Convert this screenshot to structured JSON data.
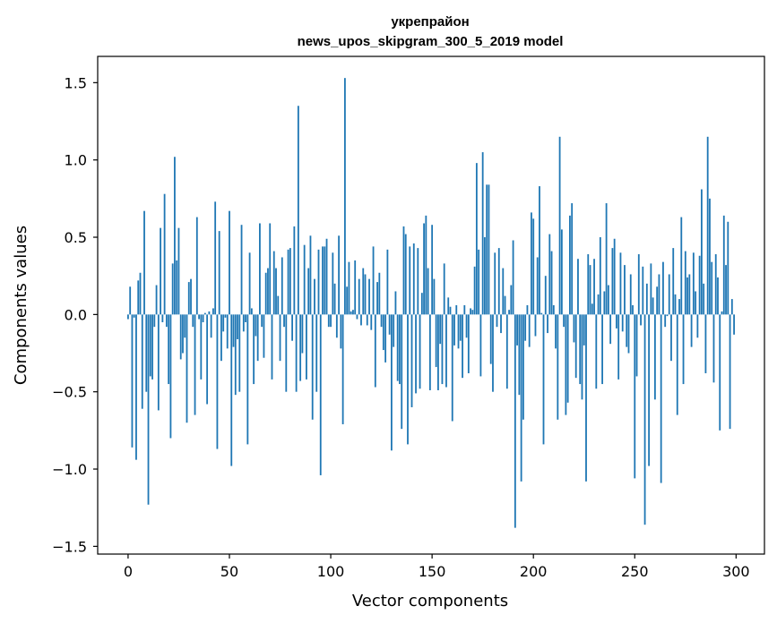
{
  "chart_data": {
    "type": "bar",
    "title_line1": "укрепрайон",
    "title_line2": "news_upos_skipgram_300_5_2019 model",
    "xlabel": "Vector components",
    "ylabel": "Components values",
    "xlim": [
      -15,
      314
    ],
    "ylim": [
      -1.55,
      1.67
    ],
    "xticks": [
      0,
      50,
      100,
      150,
      200,
      250,
      300
    ],
    "xtick_labels": [
      "0",
      "50",
      "100",
      "150",
      "200",
      "250",
      "300"
    ],
    "yticks": [
      -1.5,
      -1.0,
      -0.5,
      0.0,
      0.5,
      1.0,
      1.5
    ],
    "ytick_labels": [
      "−1.5",
      "−1.0",
      "−0.5",
      "0.0",
      "0.5",
      "1.0",
      "1.5"
    ],
    "bar_color": "#1f77b4",
    "grid": false,
    "values": [
      -0.03,
      0.18,
      -0.86,
      -0.02,
      -0.94,
      0.22,
      0.27,
      -0.61,
      0.67,
      -0.5,
      -1.23,
      -0.4,
      -0.42,
      -0.08,
      0.19,
      -0.62,
      0.56,
      -0.05,
      0.78,
      -0.08,
      -0.45,
      -0.8,
      0.33,
      1.02,
      0.35,
      0.56,
      -0.29,
      -0.25,
      -0.15,
      -0.7,
      0.21,
      0.23,
      -0.08,
      -0.65,
      0.63,
      -0.03,
      -0.42,
      -0.05,
      0.01,
      -0.58,
      0.02,
      -0.15,
      0.04,
      0.73,
      -0.87,
      0.54,
      -0.3,
      -0.11,
      -0.02,
      -0.22,
      0.67,
      -0.98,
      -0.21,
      -0.52,
      -0.16,
      -0.5,
      0.58,
      -0.11,
      -0.05,
      -0.84,
      0.4,
      0.04,
      -0.45,
      -0.14,
      -0.3,
      0.59,
      -0.08,
      -0.28,
      0.27,
      0.3,
      0.59,
      -0.42,
      0.41,
      0.3,
      0.12,
      -0.3,
      0.37,
      -0.08,
      -0.5,
      0.42,
      0.43,
      -0.17,
      0.57,
      -0.5,
      1.35,
      -0.43,
      -0.25,
      0.45,
      -0.42,
      0.3,
      0.51,
      -0.68,
      0.23,
      -0.5,
      0.42,
      -1.04,
      0.44,
      0.44,
      0.49,
      -0.08,
      -0.08,
      0.4,
      0.2,
      -0.15,
      0.51,
      -0.22,
      -0.71,
      1.53,
      0.18,
      0.34,
      0.02,
      0.03,
      0.35,
      -0.03,
      0.23,
      -0.07,
      0.3,
      0.26,
      -0.07,
      0.23,
      -0.1,
      0.44,
      -0.47,
      0.21,
      0.27,
      -0.08,
      -0.23,
      -0.31,
      0.42,
      -0.13,
      -0.88,
      -0.21,
      0.15,
      -0.43,
      -0.45,
      -0.74,
      0.57,
      0.52,
      -0.84,
      0.44,
      -0.6,
      0.46,
      -0.51,
      0.43,
      -0.48,
      0.14,
      0.59,
      0.64,
      0.3,
      -0.49,
      0.58,
      0.23,
      -0.34,
      -0.49,
      -0.19,
      -0.45,
      0.33,
      -0.47,
      0.11,
      0.05,
      -0.69,
      -0.2,
      0.06,
      -0.22,
      -0.17,
      -0.41,
      0.06,
      -0.15,
      -0.38,
      0.04,
      0.03,
      0.31,
      0.98,
      0.42,
      -0.4,
      1.05,
      0.5,
      0.84,
      0.84,
      -0.32,
      -0.5,
      0.4,
      -0.08,
      0.43,
      -0.12,
      0.3,
      0.12,
      -0.48,
      0.03,
      0.19,
      0.48,
      -1.38,
      -0.2,
      -0.52,
      -1.08,
      -0.68,
      -0.17,
      0.06,
      -0.21,
      0.66,
      0.62,
      -0.14,
      0.37,
      0.83,
      0.01,
      -0.84,
      0.25,
      -0.12,
      0.52,
      0.41,
      0.06,
      -0.22,
      -0.68,
      1.15,
      0.55,
      -0.08,
      -0.65,
      -0.57,
      0.64,
      0.72,
      -0.18,
      -0.41,
      0.36,
      -0.45,
      -0.55,
      -0.2,
      -1.08,
      0.39,
      0.32,
      0.07,
      0.36,
      -0.48,
      0.13,
      0.5,
      -0.45,
      0.15,
      0.72,
      0.19,
      -0.19,
      0.43,
      0.49,
      -0.09,
      -0.42,
      0.4,
      -0.11,
      0.32,
      -0.21,
      -0.25,
      0.26,
      0.06,
      -1.06,
      -0.4,
      0.39,
      -0.07,
      0.31,
      -1.36,
      0.2,
      -0.98,
      0.33,
      0.11,
      -0.55,
      0.18,
      0.26,
      -1.09,
      0.34,
      -0.08,
      -0.01,
      0.26,
      -0.3,
      0.43,
      0.13,
      -0.65,
      0.1,
      0.63,
      -0.45,
      0.41,
      0.24,
      0.26,
      -0.21,
      0.4,
      0.15,
      -0.15,
      0.38,
      0.81,
      0.2,
      -0.38,
      1.15,
      0.75,
      0.34,
      -0.44,
      0.39,
      0.24,
      -0.75,
      0.02,
      0.64,
      0.32,
      0.6,
      -0.74,
      0.1,
      -0.13
    ]
  }
}
